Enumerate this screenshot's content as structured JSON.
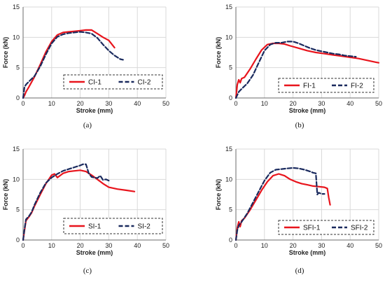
{
  "colors": {
    "specimen_1": "#e8141c",
    "specimen_2": "#1a2a5e",
    "grid": "#d9d9d9",
    "axis": "#6b6b6b"
  },
  "chart_data": [
    {
      "type": "line",
      "panel_label": "(a)",
      "xlabel": "Stroke (mm)",
      "ylabel": "Force (kN)",
      "xlim": [
        0,
        50
      ],
      "ylim": [
        0,
        15
      ],
      "xticks": [
        "0",
        "10",
        "20",
        "30",
        "40",
        "50"
      ],
      "yticks": [
        "0",
        "5",
        "10",
        "15"
      ],
      "grid": true,
      "legend_position": "lower-right",
      "series": [
        {
          "name": "CI-1",
          "style": "solid",
          "x": [
            0,
            0.5,
            1,
            2,
            4,
            6,
            8,
            10,
            12,
            14,
            16,
            18,
            20,
            22,
            24,
            26,
            28,
            30,
            32
          ],
          "y": [
            0,
            0.4,
            1.0,
            1.8,
            3.5,
            5.5,
            7.6,
            9.3,
            10.4,
            10.8,
            10.9,
            11.0,
            11.1,
            11.2,
            11.2,
            10.6,
            10.0,
            9.5,
            8.3
          ]
        },
        {
          "name": "CI-2",
          "style": "dashed",
          "x": [
            0,
            0.5,
            1,
            2,
            4,
            6,
            8,
            10,
            12,
            14,
            16,
            18,
            20,
            22,
            24,
            26,
            28,
            30,
            32,
            34,
            35
          ],
          "y": [
            0,
            1.8,
            2.2,
            2.7,
            3.6,
            5.2,
            7.2,
            9.0,
            10.1,
            10.5,
            10.7,
            10.8,
            10.9,
            10.8,
            10.6,
            9.9,
            8.8,
            7.8,
            7.0,
            6.4,
            6.3
          ]
        }
      ]
    },
    {
      "type": "line",
      "panel_label": "(b)",
      "xlabel": "Stroke (mm)",
      "ylabel": "Force (kN)",
      "xlim": [
        0,
        50
      ],
      "ylim": [
        0,
        15
      ],
      "xticks": [
        "0",
        "10",
        "20",
        "30",
        "40",
        "50"
      ],
      "yticks": [
        "0",
        "5",
        "10",
        "15"
      ],
      "grid": true,
      "legend_position": "lower-right",
      "series": [
        {
          "name": "FI-1",
          "style": "solid",
          "x": [
            0,
            0.5,
            1,
            1.5,
            2,
            3,
            5,
            7,
            9,
            11,
            13,
            15,
            17,
            19,
            22,
            25,
            28,
            31,
            34,
            37,
            40,
            43,
            46,
            49,
            50
          ],
          "y": [
            0,
            2.2,
            3.0,
            2.5,
            3.2,
            3.4,
            4.8,
            6.4,
            7.9,
            8.8,
            9.0,
            9.0,
            8.9,
            8.6,
            8.2,
            7.8,
            7.5,
            7.3,
            7.1,
            6.9,
            6.7,
            6.5,
            6.2,
            5.9,
            5.8
          ]
        },
        {
          "name": "FI-2",
          "style": "dashed",
          "x": [
            0,
            1,
            2,
            4,
            6,
            8,
            10,
            12,
            14,
            16,
            18,
            20,
            22,
            24,
            26,
            28,
            30,
            32,
            34,
            36,
            38,
            40,
            42
          ],
          "y": [
            0,
            1.0,
            1.5,
            2.4,
            3.8,
            5.8,
            7.8,
            8.8,
            9.1,
            9.1,
            9.3,
            9.3,
            9.0,
            8.6,
            8.2,
            7.9,
            7.7,
            7.5,
            7.3,
            7.2,
            7.0,
            6.9,
            6.8
          ]
        }
      ]
    },
    {
      "type": "line",
      "panel_label": "(c)",
      "xlabel": "Stroke (mm)",
      "ylabel": "Force (kN)",
      "xlim": [
        0,
        50
      ],
      "ylim": [
        0,
        15
      ],
      "xticks": [
        "0",
        "10",
        "20",
        "30",
        "40",
        "50"
      ],
      "yticks": [
        "0",
        "5",
        "10",
        "15"
      ],
      "grid": true,
      "legend_position": "lower-right",
      "series": [
        {
          "name": "SI-1",
          "style": "solid",
          "x": [
            0,
            0.5,
            1,
            2,
            3,
            4,
            6,
            8,
            10,
            11,
            12,
            14,
            16,
            18,
            20,
            22,
            24,
            26,
            28,
            30,
            33,
            36,
            39
          ],
          "y": [
            0,
            1.6,
            3.2,
            3.8,
            4.5,
            5.6,
            7.5,
            9.3,
            10.7,
            10.9,
            10.3,
            11.0,
            11.3,
            11.4,
            11.5,
            11.3,
            10.7,
            10.0,
            9.3,
            8.7,
            8.4,
            8.2,
            8.0
          ]
        },
        {
          "name": "SI-2",
          "style": "dashed",
          "x": [
            0,
            0.5,
            1,
            2,
            3,
            4,
            6,
            8,
            10,
            12,
            14,
            16,
            18,
            20,
            21,
            22,
            23,
            24,
            26,
            27,
            28,
            29,
            30
          ],
          "y": [
            0,
            1.8,
            3.4,
            3.9,
            4.6,
            5.8,
            7.8,
            9.4,
            10.3,
            10.9,
            11.4,
            11.7,
            12.0,
            12.3,
            12.5,
            12.5,
            11.0,
            10.4,
            10.2,
            10.6,
            9.9,
            10.0,
            9.8
          ]
        }
      ]
    },
    {
      "type": "line",
      "panel_label": "(d)",
      "xlabel": "Stroke (mm)",
      "ylabel": "Force (kN)",
      "xlim": [
        0,
        50
      ],
      "ylim": [
        0,
        15
      ],
      "xticks": [
        "0",
        "10",
        "20",
        "30",
        "40",
        "50"
      ],
      "yticks": [
        "0",
        "5",
        "10",
        "15"
      ],
      "grid": true,
      "legend_position": "lower-right",
      "series": [
        {
          "name": "SFI-1",
          "style": "solid",
          "x": [
            0,
            0.5,
            1,
            1.5,
            2,
            3,
            5,
            7,
            9,
            11,
            13,
            15,
            17,
            19,
            21,
            23,
            25,
            27,
            29,
            31,
            32,
            32.5,
            33
          ],
          "y": [
            0,
            2.0,
            3.0,
            2.2,
            3.2,
            3.6,
            5.0,
            6.6,
            8.2,
            9.6,
            10.6,
            10.9,
            10.6,
            10.0,
            9.6,
            9.3,
            9.1,
            8.9,
            8.8,
            8.7,
            8.5,
            7.0,
            5.8
          ]
        },
        {
          "name": "SFI-2",
          "style": "dashed",
          "x": [
            0,
            0.5,
            1,
            2,
            4,
            6,
            8,
            10,
            12,
            14,
            16,
            18,
            20,
            22,
            24,
            26,
            27,
            28,
            28.5,
            29,
            30,
            31
          ],
          "y": [
            0,
            1.6,
            2.4,
            3.0,
            4.4,
            6.2,
            8.0,
            9.8,
            11.1,
            11.6,
            11.7,
            11.8,
            11.9,
            11.8,
            11.6,
            11.3,
            11.1,
            11.0,
            7.5,
            7.8,
            7.6,
            7.6
          ]
        }
      ]
    }
  ]
}
